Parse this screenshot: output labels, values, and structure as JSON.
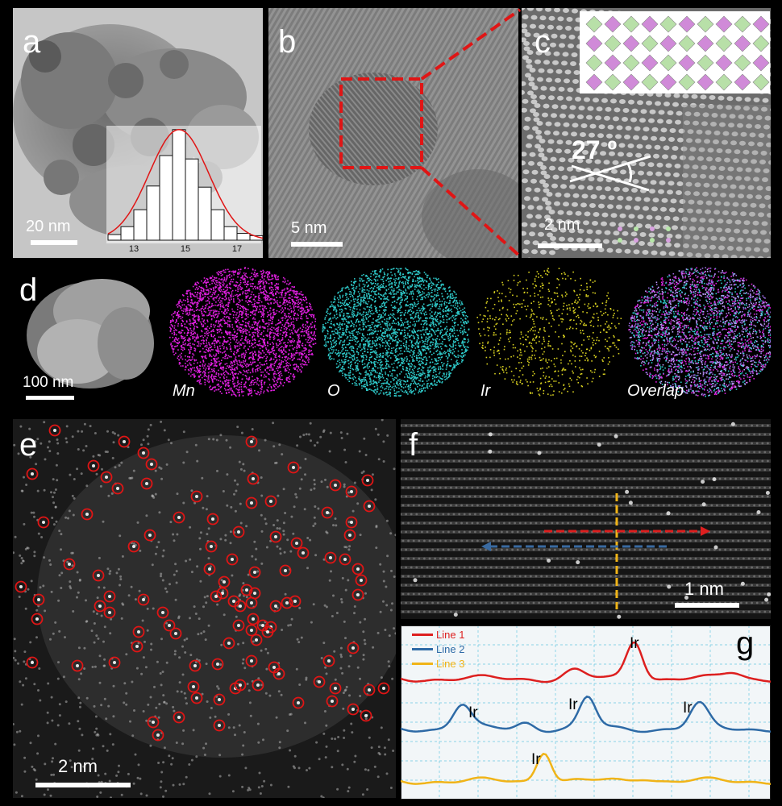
{
  "panels": {
    "a": {
      "label": "a",
      "scalebar": "20 nm",
      "histogram": {
        "x_ticks": [
          "13",
          "15",
          "17"
        ],
        "values": [
          0.05,
          0.12,
          0.27,
          0.48,
          0.75,
          0.98,
          0.72,
          0.47,
          0.27,
          0.12,
          0.06,
          0.04
        ]
      }
    },
    "b": {
      "label": "b",
      "scalebar": "5 nm"
    },
    "c": {
      "label": "c",
      "scalebar": "2 nm",
      "angle": "27 º"
    },
    "d": {
      "label": "d",
      "scalebar": "100 nm",
      "maps": [
        {
          "element": "Mn",
          "color": "#e020e0"
        },
        {
          "element": "O",
          "color": "#2ec8c8"
        },
        {
          "element": "Ir",
          "color": "#d8d020"
        },
        {
          "element": "Overlap",
          "color": "#9a6ae0"
        }
      ]
    },
    "e": {
      "label": "e",
      "scalebar": "2 nm"
    },
    "f": {
      "label": "f",
      "scalebar": "1 nm"
    },
    "g": {
      "label": "g",
      "legend": [
        {
          "name": "Line 1",
          "color": "#dd1f1f"
        },
        {
          "name": "Line 2",
          "color": "#2e6aa6"
        },
        {
          "name": "Line 3",
          "color": "#f0b418"
        }
      ],
      "peak_label": "Ir"
    }
  }
}
